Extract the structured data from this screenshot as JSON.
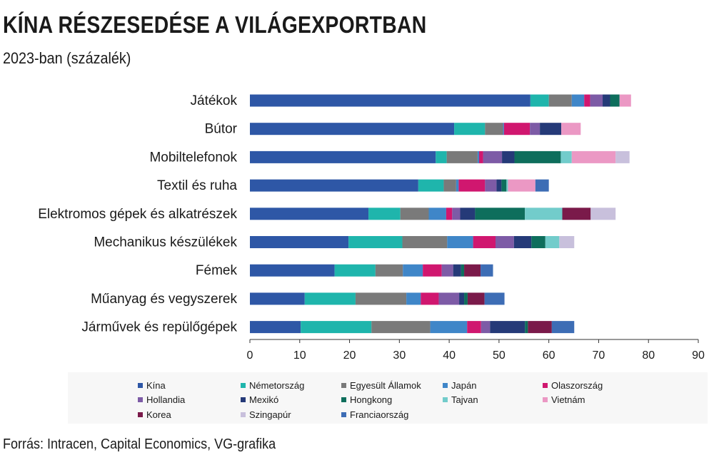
{
  "header": {
    "title": "KÍNA RÉSZESEDÉSE A VILÁGEXPORTBAN",
    "subtitle": "2023-ban (százalék)"
  },
  "footer": {
    "source": "Forrás: Intracen, Capital Economics, VG-grafika"
  },
  "chart_data": {
    "type": "bar",
    "orientation": "horizontal",
    "stacked": true,
    "title": "KÍNA RÉSZESEDÉSE A VILÁGEXPORTBAN",
    "subtitle": "2023-ban (százalék)",
    "xlim": [
      0,
      90
    ],
    "xticks": [
      "0",
      "10",
      "20",
      "30",
      "40",
      "50",
      "60",
      "70",
      "80",
      "90"
    ],
    "grid": false,
    "legend_position": "bottom",
    "categories": [
      "Játékok",
      "Bútor",
      "Mobiltelefonok",
      "Textil és ruha",
      "Elektromos gépek és alkatrészek",
      "Mechanikus készülékek",
      "Fémek",
      "Műanyag és vegyszerek",
      "Járművek és repülőgépek"
    ],
    "series": [
      {
        "name": "Kína",
        "color": "#2e57a6",
        "values": [
          56.3,
          41.0,
          37.3,
          33.8,
          23.8,
          19.8,
          17.0,
          11.0,
          10.2
        ]
      },
      {
        "name": "Németország",
        "color": "#1fb5ac",
        "values": [
          3.7,
          6.2,
          2.2,
          5.1,
          6.4,
          10.8,
          8.2,
          10.2,
          14.2
        ]
      },
      {
        "name": "Egyesült Államok",
        "color": "#7a7a7a",
        "values": [
          4.6,
          3.6,
          6.2,
          2.5,
          5.7,
          9.0,
          5.5,
          10.2,
          11.8
        ]
      },
      {
        "name": "Japán",
        "color": "#3f86c8",
        "values": [
          2.5,
          0.2,
          0.3,
          0.5,
          3.5,
          5.2,
          4.0,
          2.9,
          7.4
        ]
      },
      {
        "name": "Olaszország",
        "color": "#d0176f",
        "values": [
          1.2,
          5.2,
          0.8,
          5.3,
          1.2,
          4.5,
          3.8,
          3.6,
          2.8
        ]
      },
      {
        "name": "Hollandia",
        "color": "#7d5ba6",
        "values": [
          2.5,
          2.0,
          3.8,
          2.3,
          1.6,
          3.7,
          2.3,
          4.1,
          1.8
        ]
      },
      {
        "name": "Mexikó",
        "color": "#253a78",
        "values": [
          1.5,
          4.3,
          2.5,
          1.0,
          3.0,
          3.5,
          1.6,
          1.0,
          7.0
        ]
      },
      {
        "name": "Hongkong",
        "color": "#0e6e5c",
        "values": [
          1.9,
          0.0,
          9.3,
          1.0,
          10.0,
          2.8,
          0.6,
          0.7,
          0.6
        ]
      },
      {
        "name": "Tajvan",
        "color": "#72cccb",
        "values": [
          0.0,
          0.0,
          2.2,
          0.3,
          7.5,
          2.8,
          0.0,
          0.0,
          0.0
        ]
      },
      {
        "name": "Vietnám",
        "color": "#eb98c4",
        "values": [
          2.3,
          3.9,
          8.8,
          5.5,
          0.0,
          0.0,
          0.0,
          0.0,
          0.0
        ]
      },
      {
        "name": "Korea",
        "color": "#7a1a4a",
        "values": [
          0.0,
          0.0,
          0.0,
          0.0,
          5.7,
          0.0,
          3.3,
          3.4,
          4.8
        ]
      },
      {
        "name": "Szingapúr",
        "color": "#c8c0dc",
        "values": [
          0.0,
          0.0,
          2.8,
          0.0,
          5.0,
          3.0,
          0.0,
          0.0,
          0.0
        ]
      },
      {
        "name": "Franciaország",
        "color": "#3d6db5",
        "values": [
          0.0,
          0.0,
          0.0,
          2.7,
          0.0,
          0.0,
          2.5,
          4.0,
          4.5
        ]
      }
    ]
  }
}
